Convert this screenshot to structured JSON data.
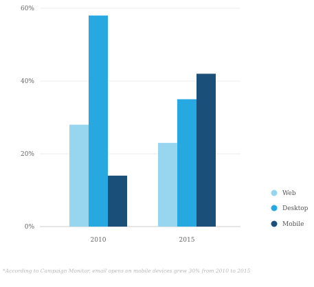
{
  "chart_data": {
    "type": "bar",
    "categories": [
      "2010",
      "2015"
    ],
    "series": [
      {
        "name": "Web",
        "values": [
          28,
          23
        ],
        "color": "#98d6f0"
      },
      {
        "name": "Desktop",
        "values": [
          58,
          35
        ],
        "color": "#27a8e0"
      },
      {
        "name": "Mobile",
        "values": [
          14,
          42
        ],
        "color": "#1a4f7a"
      }
    ],
    "y_ticks": [
      0,
      20,
      40,
      60
    ],
    "y_tick_labels": [
      "0%",
      "20%",
      "40%",
      "60%"
    ],
    "ylim": [
      0,
      60
    ],
    "grid": true,
    "legend_position": "right"
  },
  "footnote": "*According to Campaign Monitor, email opens on mobile devices grew 30% from 2010 to 2015"
}
